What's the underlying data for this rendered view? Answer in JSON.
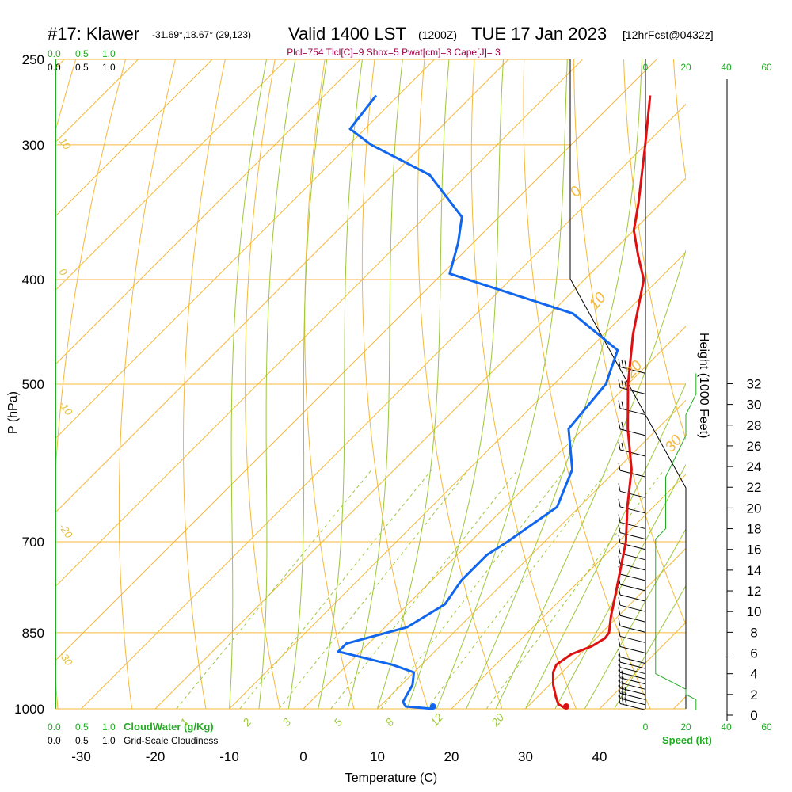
{
  "header": {
    "station": "#17: Klawer",
    "coords": "-31.69°,18.67° (29,123)",
    "valid": "Valid 1400 LST",
    "utc": "(1200Z)",
    "date": "TUE 17 Jan 2023",
    "forecast": "[12hrFcst@0432z]",
    "params": "Plcl=754 Tlcl[C]=9 Shox=5 Pwat[cm]=3 Cape[J]= 3"
  },
  "colors": {
    "temperature": "#dd1111",
    "dewpoint": "#1166ee",
    "isobar": "#f5b83a",
    "dry_adiabat": "#f5b83a",
    "moist_adiabat": "#9cc83a",
    "mixing_ratio": "#9cc83a",
    "green_text": "#22aa22",
    "params_text": "#990044"
  },
  "chart_data": {
    "type": "line",
    "subtype": "skew-T log-P sounding",
    "xlabel": "Temperature (C)",
    "ylabel": "P (hPa)",
    "right_axis_label": "Height (1000 Feet)",
    "x_ticks": [
      -30,
      -20,
      -10,
      0,
      10,
      20,
      30,
      40
    ],
    "pressure_ticks": [
      250,
      300,
      400,
      500,
      700,
      850,
      1000
    ],
    "xlim": [
      -33,
      45
    ],
    "plim": [
      1000,
      250
    ],
    "height_ticks": [
      0,
      2,
      4,
      6,
      8,
      10,
      12,
      14,
      16,
      18,
      20,
      22,
      24,
      26,
      28,
      30,
      32
    ],
    "isotherm_labels": [
      -30,
      -20,
      -10,
      0,
      10,
      20,
      30
    ],
    "dry_adiabat_labels": [
      "10",
      "0",
      "-10",
      "-20",
      "-30",
      "0",
      "10",
      "20",
      "30"
    ],
    "mixing_ratio_labels": [
      "1",
      "2",
      "3",
      "5",
      "8",
      "12",
      "20"
    ],
    "top_scale_labels": [
      "0.0",
      "0.5",
      "1.0"
    ],
    "cloud_water_label": "CloudWater (g/Kg)",
    "cloudiness_label": "Grid-Scale Cloudiness",
    "wind_speed_ticks": [
      "0",
      "20",
      "40",
      "60"
    ],
    "wind_speed_label": "Speed (kt)",
    "series": [
      {
        "name": "Temperature",
        "points": [
          {
            "p": 1000,
            "t": 35.5
          },
          {
            "p": 990,
            "t": 33.8
          },
          {
            "p": 975,
            "t": 32.5
          },
          {
            "p": 950,
            "t": 30.5
          },
          {
            "p": 925,
            "t": 28.8
          },
          {
            "p": 910,
            "t": 28.2
          },
          {
            "p": 890,
            "t": 28.8
          },
          {
            "p": 875,
            "t": 30.5
          },
          {
            "p": 860,
            "t": 31.2
          },
          {
            "p": 850,
            "t": 31.0
          },
          {
            "p": 820,
            "t": 29.0
          },
          {
            "p": 780,
            "t": 26.5
          },
          {
            "p": 750,
            "t": 24.5
          },
          {
            "p": 700,
            "t": 21.0
          },
          {
            "p": 650,
            "t": 16.5
          },
          {
            "p": 600,
            "t": 12.0
          },
          {
            "p": 550,
            "t": 6.0
          },
          {
            "p": 500,
            "t": 0.0
          },
          {
            "p": 450,
            "t": -6.0
          },
          {
            "p": 400,
            "t": -12.0
          },
          {
            "p": 380,
            "t": -16.0
          },
          {
            "p": 360,
            "t": -20.0
          },
          {
            "p": 340,
            "t": -23.0
          },
          {
            "p": 300,
            "t": -30.0
          },
          {
            "p": 270,
            "t": -36.0
          }
        ]
      },
      {
        "name": "Dewpoint",
        "points": [
          {
            "p": 1000,
            "t": 17.5
          },
          {
            "p": 995,
            "t": 13.5
          },
          {
            "p": 985,
            "t": 12.5
          },
          {
            "p": 950,
            "t": 11.5
          },
          {
            "p": 925,
            "t": 10.0
          },
          {
            "p": 910,
            "t": 6.0
          },
          {
            "p": 885,
            "t": -3.0
          },
          {
            "p": 870,
            "t": -3.0
          },
          {
            "p": 840,
            "t": 3.0
          },
          {
            "p": 800,
            "t": 5.0
          },
          {
            "p": 760,
            "t": 4.0
          },
          {
            "p": 720,
            "t": 4.0
          },
          {
            "p": 700,
            "t": 5.0
          },
          {
            "p": 650,
            "t": 7.0
          },
          {
            "p": 600,
            "t": 4.0
          },
          {
            "p": 550,
            "t": -2.0
          },
          {
            "p": 500,
            "t": -3.0
          },
          {
            "p": 465,
            "t": -6.0
          },
          {
            "p": 430,
            "t": -17.0
          },
          {
            "p": 395,
            "t": -39.0
          },
          {
            "p": 370,
            "t": -42.0
          },
          {
            "p": 350,
            "t": -45.0
          },
          {
            "p": 320,
            "t": -55.0
          },
          {
            "p": 300,
            "t": -67.0
          },
          {
            "p": 290,
            "t": -72.0
          },
          {
            "p": 270,
            "t": -73.0
          }
        ]
      }
    ],
    "surface_markers": [
      {
        "name": "Temperature",
        "p": 1000,
        "t": 35.5
      },
      {
        "name": "Dewpoint",
        "p": 1000,
        "t": 17.5
      }
    ],
    "wind_profile": [
      {
        "h": 0.5,
        "spd": 25
      },
      {
        "h": 1.0,
        "spd": 25
      },
      {
        "h": 1.5,
        "spd": 25
      },
      {
        "h": 2.0,
        "spd": 20
      },
      {
        "h": 2.5,
        "spd": 20
      },
      {
        "h": 3.0,
        "spd": 15
      },
      {
        "h": 3.5,
        "spd": 10
      },
      {
        "h": 4.0,
        "spd": 5
      },
      {
        "h": 4.5,
        "spd": 5
      },
      {
        "h": 5.0,
        "spd": 5
      },
      {
        "h": 6.0,
        "spd": 5
      },
      {
        "h": 7.0,
        "spd": 5
      },
      {
        "h": 8.0,
        "spd": 5
      },
      {
        "h": 9.0,
        "spd": 5
      },
      {
        "h": 10.0,
        "spd": 5
      },
      {
        "h": 11.0,
        "spd": 5
      },
      {
        "h": 12.0,
        "spd": 5
      },
      {
        "h": 13.0,
        "spd": 5
      },
      {
        "h": 14.0,
        "spd": 5
      },
      {
        "h": 15.0,
        "spd": 5
      },
      {
        "h": 16.0,
        "spd": 5
      },
      {
        "h": 17.0,
        "spd": 5
      },
      {
        "h": 18.0,
        "spd": 10
      },
      {
        "h": 19.5,
        "spd": 10
      },
      {
        "h": 21.0,
        "spd": 10
      },
      {
        "h": 23.0,
        "spd": 10
      },
      {
        "h": 25.0,
        "spd": 15
      },
      {
        "h": 27.0,
        "spd": 20
      },
      {
        "h": 29.0,
        "spd": 20
      },
      {
        "h": 31.0,
        "spd": 25
      },
      {
        "h": 33.0,
        "spd": 25
      }
    ]
  }
}
